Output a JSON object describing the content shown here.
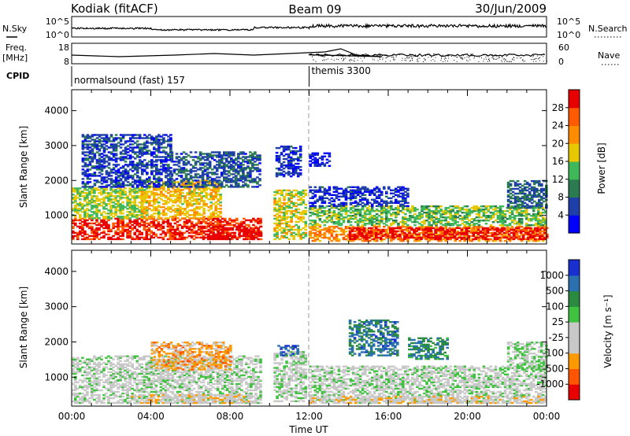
{
  "header": {
    "station": "Kodiak (fitACF)",
    "beam": "Beam 09",
    "date": "30/Jun/2009"
  },
  "side_labels": {
    "nsky": "N.Sky",
    "nsearch": "N.Search",
    "freq_line1": "Freq.",
    "freq_line2": "[MHz]",
    "nave": "Nave",
    "cpid": "CPID"
  },
  "noise_axis": {
    "left_top": "10^5",
    "left_bottom": "10^0",
    "right_top": "10^5",
    "right_bottom": "10^0"
  },
  "freq_axis": {
    "left_top": "18",
    "left_bottom": "8",
    "right_top": "60",
    "right_bottom": "0"
  },
  "cpid_segments": [
    {
      "label": "normalsound (fast) 157",
      "start_hour": 0
    },
    {
      "label": "themis 3300",
      "start_hour": 12
    }
  ],
  "colors": {
    "power_scale": [
      "#0000ff",
      "#1f3fa8",
      "#2a7b4f",
      "#3fb85a",
      "#e8c800",
      "#ff8c00",
      "#ff5a00",
      "#e80000"
    ],
    "velocity_scale": [
      "#1a2fd0",
      "#2a6fb0",
      "#2a8a3f",
      "#3fc23f",
      "#c8c8c8",
      "#c8c8c8",
      "#ff9900",
      "#ff5500",
      "#e80000"
    ]
  },
  "chart_data": [
    {
      "type": "heatmap",
      "name": "Power",
      "ylabel": "Slant Range [km]",
      "xlabel": "Time UT",
      "x_range_hours": [
        0,
        24
      ],
      "ylim": [
        180,
        4600
      ],
      "x_ticks": [
        "00:00",
        "04:00",
        "08:00",
        "12:00",
        "16:00",
        "20:00",
        "00:00"
      ],
      "y_ticks": [
        1000,
        2000,
        3000,
        4000
      ],
      "colorbar": {
        "label": "Power [dB]",
        "ticks": [
          "4",
          "8",
          "12",
          "16",
          "20",
          "24",
          "28"
        ],
        "range": [
          0,
          32
        ]
      },
      "regions": [
        {
          "t0": 0,
          "t1": 9.5,
          "r0": 300,
          "r1": 900,
          "level": 0.9
        },
        {
          "t0": 0,
          "t1": 3.5,
          "r0": 900,
          "r1": 1800,
          "level": 0.5
        },
        {
          "t0": 3.5,
          "t1": 7.5,
          "r0": 900,
          "r1": 2000,
          "level": 0.6
        },
        {
          "t0": 6.5,
          "t1": 9.5,
          "r0": 300,
          "r1": 700,
          "level": 0.97
        },
        {
          "t0": 0.5,
          "t1": 5,
          "r0": 1800,
          "r1": 3300,
          "level": 0.18
        },
        {
          "t0": 5,
          "t1": 9.5,
          "r0": 1800,
          "r1": 2800,
          "level": 0.22
        },
        {
          "t0": 10.2,
          "t1": 11.8,
          "r0": 300,
          "r1": 1700,
          "level": 0.55
        },
        {
          "t0": 10.3,
          "t1": 11.5,
          "r0": 2100,
          "r1": 3000,
          "level": 0.15
        },
        {
          "t0": 12,
          "t1": 24,
          "r0": 250,
          "r1": 700,
          "level": 0.7
        },
        {
          "t0": 14,
          "t1": 24,
          "r0": 300,
          "r1": 650,
          "level": 0.95
        },
        {
          "t0": 12,
          "t1": 24,
          "r0": 700,
          "r1": 1250,
          "level": 0.45
        },
        {
          "t0": 12,
          "t1": 17,
          "r0": 1250,
          "r1": 1800,
          "level": 0.15
        },
        {
          "t0": 12,
          "t1": 13,
          "r0": 2400,
          "r1": 2800,
          "level": 0.1
        },
        {
          "t0": 22,
          "t1": 24,
          "r0": 1200,
          "r1": 2000,
          "level": 0.25
        }
      ]
    },
    {
      "type": "heatmap",
      "name": "Velocity",
      "ylabel": "Slant Range [km]",
      "xlabel": "Time UT",
      "x_range_hours": [
        0,
        24
      ],
      "ylim": [
        180,
        4600
      ],
      "x_ticks": [
        "00:00",
        "04:00",
        "08:00",
        "12:00",
        "16:00",
        "20:00",
        "00:00"
      ],
      "y_ticks": [
        1000,
        2000,
        3000,
        4000
      ],
      "colorbar": {
        "label": "Velocity [m s⁻¹]",
        "ticks": [
          "1000",
          "500",
          "100",
          "25",
          "-25",
          "-100",
          "-500",
          "-1000"
        ],
        "range": [
          -1000,
          1000
        ]
      },
      "regions": [
        {
          "t0": 0,
          "t1": 9.5,
          "r0": 250,
          "r1": 900,
          "level": 0.5
        },
        {
          "t0": 0,
          "t1": 9.5,
          "r0": 900,
          "r1": 1600,
          "level": 0.5
        },
        {
          "t0": 4,
          "t1": 8,
          "r0": 1200,
          "r1": 2000,
          "level": 0.7
        },
        {
          "t0": 3,
          "t1": 9,
          "r0": 250,
          "r1": 500,
          "level": 0.62
        },
        {
          "t0": 10.2,
          "t1": 11.8,
          "r0": 300,
          "r1": 1700,
          "level": 0.5
        },
        {
          "t0": 10.4,
          "t1": 11.4,
          "r0": 1600,
          "r1": 1900,
          "level": 0.15
        },
        {
          "t0": 12,
          "t1": 24,
          "r0": 250,
          "r1": 1300,
          "level": 0.5
        },
        {
          "t0": 12,
          "t1": 24,
          "r0": 250,
          "r1": 450,
          "level": 0.62
        },
        {
          "t0": 14,
          "t1": 16.5,
          "r0": 1600,
          "r1": 2600,
          "level": 0.2
        },
        {
          "t0": 17,
          "t1": 19,
          "r0": 1500,
          "r1": 2100,
          "level": 0.25
        },
        {
          "t0": 22,
          "t1": 24,
          "r0": 1200,
          "r1": 2000,
          "level": 0.45
        }
      ]
    }
  ]
}
